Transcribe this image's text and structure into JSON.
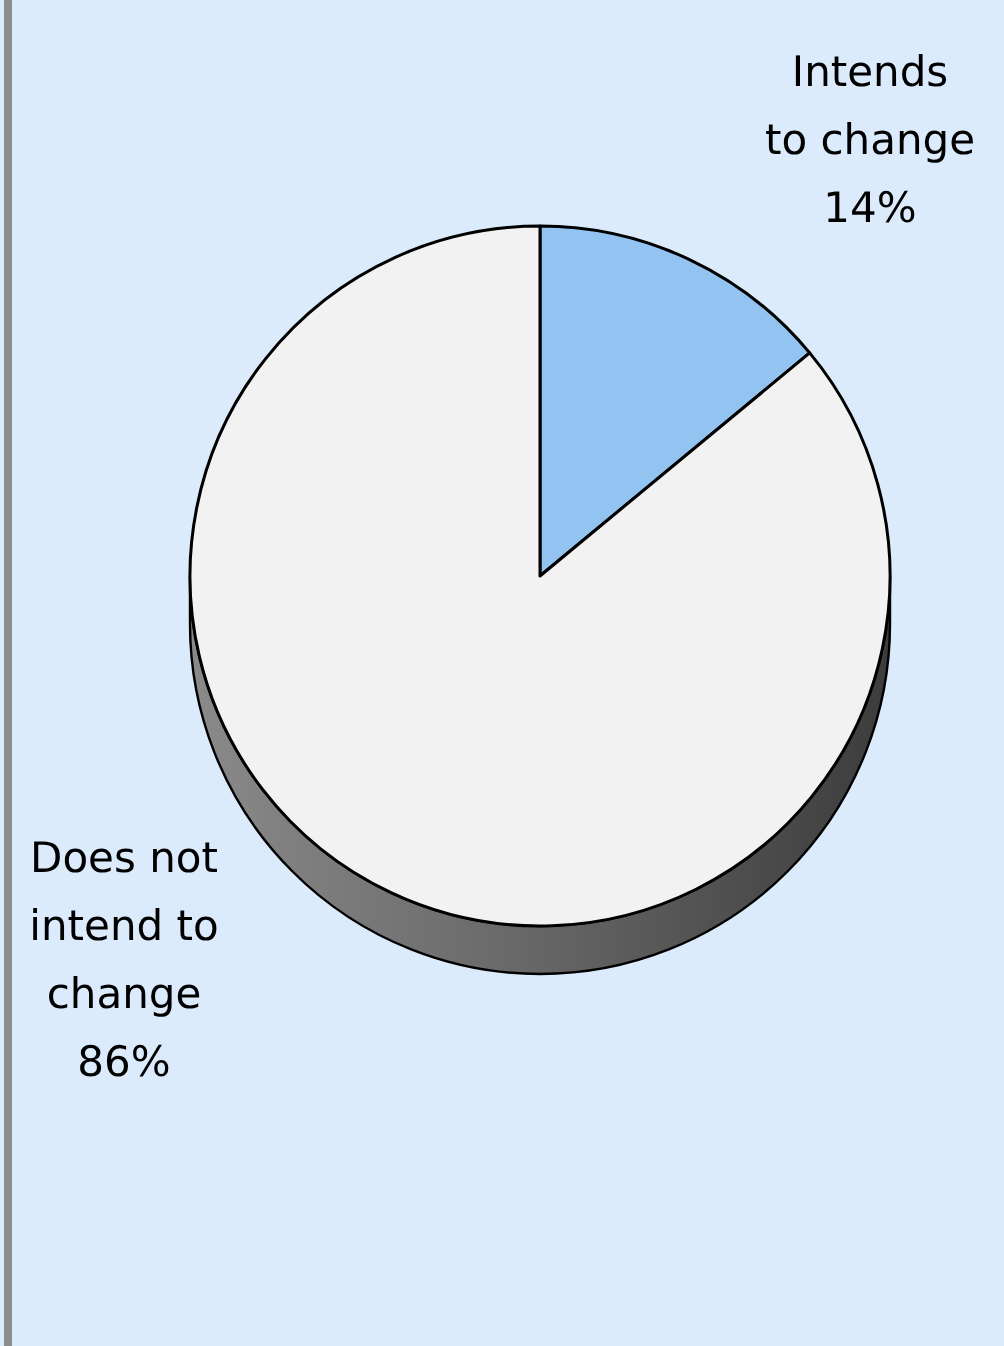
{
  "chart_data": {
    "type": "pie",
    "categories": [
      "Intends to change",
      "Does not intend to change"
    ],
    "values": [
      14,
      86
    ],
    "colors": [
      "#93c3f1",
      "#f2f2f2"
    ],
    "value_labels": [
      "14%",
      "86%"
    ]
  }
}
